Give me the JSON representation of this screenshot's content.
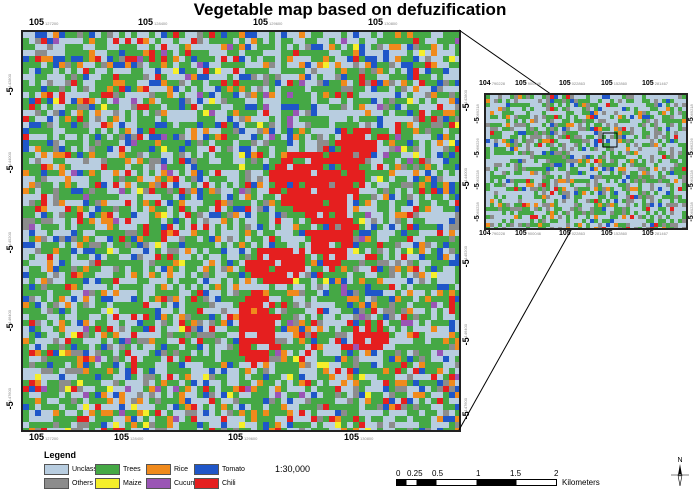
{
  "title": "Vegetable map based on defuzification",
  "main_map": {
    "top_labels": [
      {
        "deg": "105",
        "sub": "127200"
      },
      {
        "deg": "105",
        "sub": "128400"
      },
      {
        "deg": "105",
        "sub": "129600"
      },
      {
        "deg": "105",
        "sub": "130800"
      }
    ],
    "bottom_labels": [
      {
        "deg": "105",
        "sub": "127200"
      },
      {
        "deg": "105",
        "sub": "128400"
      },
      {
        "deg": "105",
        "sub": "129600"
      },
      {
        "deg": "105",
        "sub": "130800"
      }
    ],
    "left_labels": [
      {
        "deg": "-5",
        "sub": "142800"
      },
      {
        "deg": "-5",
        "sub": "144000"
      },
      {
        "deg": "-5",
        "sub": "145200"
      },
      {
        "deg": "-5",
        "sub": "146400"
      },
      {
        "deg": "-5",
        "sub": "147600"
      }
    ],
    "right_labels": [
      {
        "deg": "-5",
        "sub": "142800"
      },
      {
        "deg": "-5",
        "sub": "144000"
      },
      {
        "deg": "-5",
        "sub": "145200"
      },
      {
        "deg": "-5",
        "sub": "146400"
      },
      {
        "deg": "-5",
        "sub": "147600"
      }
    ]
  },
  "inset_map": {
    "top_labels": [
      {
        "deg": "104",
        "sub": "790228"
      },
      {
        "deg": "105",
        "sub": "900046"
      },
      {
        "deg": "105",
        "sub": "022863"
      },
      {
        "deg": "105",
        "sub": "152860"
      },
      {
        "deg": "105",
        "sub": "281467"
      }
    ],
    "bottom_labels": [
      {
        "deg": "104",
        "sub": "790228"
      },
      {
        "deg": "105",
        "sub": "900046"
      },
      {
        "deg": "105",
        "sub": "022863"
      },
      {
        "deg": "105",
        "sub": "152860"
      },
      {
        "deg": "105",
        "sub": "281467"
      }
    ],
    "left_labels": [
      {
        "deg": "-5",
        "sub": "069218"
      },
      {
        "deg": "-5",
        "sub": "066226"
      },
      {
        "deg": "-5",
        "sub": "063228"
      },
      {
        "deg": "-5",
        "sub": "060228"
      }
    ],
    "right_labels": [
      {
        "deg": "-5",
        "sub": "069218"
      },
      {
        "deg": "-5",
        "sub": "066226"
      },
      {
        "deg": "-5",
        "sub": "063228"
      },
      {
        "deg": "-5",
        "sub": "060228"
      }
    ]
  },
  "legend": {
    "title": "Legend",
    "items": [
      {
        "label": "Unclassified",
        "color": "#b8cde0"
      },
      {
        "label": "Trees",
        "color": "#45a845"
      },
      {
        "label": "Rice",
        "color": "#f08a1c"
      },
      {
        "label": "Tomato",
        "color": "#1f56c8"
      },
      {
        "label": "Others",
        "color": "#8c8c8c"
      },
      {
        "label": "Maize",
        "color": "#f5ef2a"
      },
      {
        "label": "Cucumber",
        "color": "#9a55b5"
      },
      {
        "label": "Chili",
        "color": "#e51f1f"
      }
    ]
  },
  "scale_text": "1:30,000",
  "scalebar": {
    "ticks": [
      "0",
      "0.25",
      "0.5",
      "1",
      "1.5",
      "2"
    ],
    "units": "Kilometers"
  },
  "north_arrow": {
    "letter": "N",
    "icon": "north-arrow-icon"
  }
}
